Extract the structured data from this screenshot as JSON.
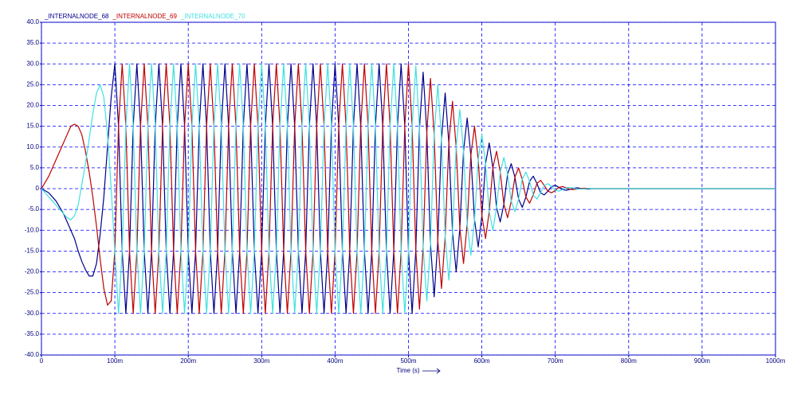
{
  "chart_data": {
    "type": "line",
    "xlabel": "Time (s)",
    "xlim": [
      0,
      1
    ],
    "ylim": [
      -40,
      40
    ],
    "xticks": [
      0,
      {
        "value": 0.1,
        "label": "100m"
      },
      {
        "value": 0.2,
        "label": "200m"
      },
      {
        "value": 0.3,
        "label": "300m"
      },
      {
        "value": 0.4,
        "label": "400m"
      },
      {
        "value": 0.5,
        "label": "500m"
      },
      {
        "value": 0.6,
        "label": "600m"
      },
      {
        "value": 0.7,
        "label": "700m"
      },
      {
        "value": 0.8,
        "label": "800m"
      },
      {
        "value": 0.9,
        "label": "900m"
      },
      {
        "value": 1,
        "label": "1000m"
      }
    ],
    "yticks": [
      {
        "value": 40,
        "label": "40.0"
      },
      {
        "value": 35,
        "label": "35.0"
      },
      {
        "value": 30,
        "label": "30.0"
      },
      {
        "value": 25,
        "label": "25.0"
      },
      {
        "value": 20,
        "label": "20.0"
      },
      {
        "value": 15,
        "label": "15.0"
      },
      {
        "value": 10,
        "label": "10.0"
      },
      {
        "value": 5,
        "label": "5.0"
      },
      0,
      {
        "value": -5,
        "label": "-5.0"
      },
      {
        "value": -10,
        "label": "-10.0"
      },
      {
        "value": -15,
        "label": "-15.0"
      },
      {
        "value": -20,
        "label": "-20.0"
      },
      {
        "value": -25,
        "label": "-25.0"
      },
      {
        "value": -30,
        "label": "-30.0"
      },
      {
        "value": -35,
        "label": "-35.0"
      },
      {
        "value": -40,
        "label": "-40.0"
      }
    ],
    "grid": true,
    "x": [
      0,
      0.005,
      0.01,
      0.015,
      0.02,
      0.025,
      0.03,
      0.035,
      0.04,
      0.045,
      0.05,
      0.055,
      0.06,
      0.065,
      0.07,
      0.075,
      0.08,
      0.085,
      0.09,
      0.095,
      0.1,
      0.105,
      0.11,
      0.115,
      0.12,
      0.125,
      0.13,
      0.135,
      0.14,
      0.145,
      0.15,
      0.155,
      0.16,
      0.165,
      0.17,
      0.175,
      0.18,
      0.185,
      0.19,
      0.195,
      0.2,
      0.205,
      0.21,
      0.215,
      0.22,
      0.225,
      0.23,
      0.235,
      0.24,
      0.245,
      0.25,
      0.255,
      0.26,
      0.265,
      0.27,
      0.275,
      0.28,
      0.285,
      0.29,
      0.295,
      0.3,
      0.305,
      0.31,
      0.315,
      0.32,
      0.325,
      0.33,
      0.335,
      0.34,
      0.345,
      0.35,
      0.355,
      0.36,
      0.365,
      0.37,
      0.375,
      0.38,
      0.385,
      0.39,
      0.395,
      0.4,
      0.405,
      0.41,
      0.415,
      0.42,
      0.425,
      0.43,
      0.435,
      0.44,
      0.445,
      0.45,
      0.455,
      0.46,
      0.465,
      0.47,
      0.475,
      0.48,
      0.485,
      0.49,
      0.495,
      0.5,
      0.505,
      0.51,
      0.515,
      0.52,
      0.525,
      0.53,
      0.535,
      0.54,
      0.545,
      0.55,
      0.555,
      0.56,
      0.565,
      0.57,
      0.575,
      0.58,
      0.585,
      0.59,
      0.595,
      0.6,
      0.605,
      0.61,
      0.615,
      0.62,
      0.625,
      0.63,
      0.635,
      0.64,
      0.645,
      0.65,
      0.655,
      0.66,
      0.665,
      0.67,
      0.675,
      0.68,
      0.685,
      0.69,
      0.695,
      0.7,
      0.705,
      0.71,
      0.715,
      0.72,
      0.725,
      0.73,
      0.735,
      0.74,
      0.745,
      0.75,
      0.755,
      0.76,
      0.765,
      0.77,
      0.775,
      0.78,
      0.785,
      0.79,
      0.795,
      0.8,
      0.805,
      0.81,
      0.815,
      0.82,
      0.825,
      0.83,
      0.835,
      0.84,
      0.845,
      0.85,
      0.855,
      0.86,
      0.865,
      0.87,
      0.875,
      0.88,
      0.885,
      0.89,
      0.895,
      0.9,
      0.905,
      0.91,
      0.915,
      0.92,
      0.925,
      0.93,
      0.935,
      0.94,
      0.945,
      0.95,
      0.955,
      0.96,
      0.965,
      0.97,
      0.975,
      0.98,
      0.985,
      0.99,
      0.995,
      1
    ],
    "series": [
      {
        "name": "_INTERNALNODE_68",
        "color": "#00008b",
        "values": [
          0,
          -0.5,
          -1,
          -2,
          -3,
          -4.5,
          -6,
          -8,
          -10,
          -12,
          -15,
          -17.5,
          -19.5,
          -21,
          -21,
          -18,
          -11,
          -2,
          10,
          22,
          30,
          15,
          -15,
          -30,
          -15,
          15,
          30,
          15,
          -15,
          -30,
          -15,
          15,
          30,
          15,
          -15,
          -30,
          -15,
          15,
          30,
          15,
          -15,
          -30,
          -15,
          15,
          30,
          15,
          -15,
          -30,
          -15,
          15,
          30,
          15,
          -15,
          -30,
          -15,
          15,
          30,
          15,
          -15,
          -30,
          -15,
          15,
          30,
          15,
          -15,
          -30,
          -15,
          15,
          30,
          15,
          -15,
          -30,
          -15,
          15,
          30,
          15,
          -15,
          -30,
          -15,
          15,
          30,
          15,
          -15,
          -30,
          -15,
          15,
          30,
          15,
          -15,
          -30,
          -15,
          15,
          30,
          15,
          -15,
          -30,
          -15,
          15,
          30,
          15,
          -15,
          -30,
          -14.75,
          14.5,
          28,
          13.5,
          -13.25,
          -26,
          -12.5,
          12,
          23,
          11,
          -10.5,
          -20,
          -9.5,
          9,
          17,
          8,
          -7.5,
          -14,
          -6.5,
          6,
          11,
          5,
          -4.5,
          -8,
          -3.75,
          3.5,
          6,
          2.75,
          -2.5,
          -4.5,
          -2,
          1.75,
          3,
          1.25,
          -1,
          -1.5,
          -0.6,
          0.5,
          0.8,
          0.3,
          -0.25,
          -0.4,
          -0.15,
          0.1,
          0.2,
          0.05,
          -0.05,
          -0.1,
          0,
          0,
          0,
          0,
          0,
          0,
          0,
          0,
          0,
          0,
          0,
          0,
          0,
          0,
          0,
          0,
          0,
          0,
          0,
          0,
          0,
          0,
          0,
          0,
          0,
          0,
          0,
          0,
          0,
          0,
          0,
          0,
          0,
          0,
          0,
          0,
          0,
          0,
          0,
          0,
          0,
          0,
          0,
          0,
          0,
          0,
          0,
          0,
          0,
          0,
          0
        ]
      },
      {
        "name": "_INTERNALNODE_69",
        "color": "#c00000",
        "values": [
          0,
          1.5,
          3,
          5,
          7,
          9,
          11,
          13,
          15,
          15.5,
          15,
          13,
          9,
          4,
          -2,
          -9,
          -17,
          -24,
          -28,
          -27,
          -15,
          15,
          30,
          15,
          -15,
          -30,
          -15,
          15,
          30,
          15,
          -15,
          -30,
          -15,
          15,
          30,
          15,
          -15,
          -30,
          -15,
          15,
          30,
          15,
          -15,
          -30,
          -15,
          15,
          30,
          15,
          -15,
          -30,
          -15,
          15,
          30,
          15,
          -15,
          -30,
          -15,
          15,
          30,
          15,
          -15,
          -30,
          -15,
          15,
          30,
          15,
          -15,
          -30,
          -15,
          15,
          30,
          15,
          -15,
          -30,
          -15,
          15,
          30,
          15,
          -15,
          -30,
          -15,
          15,
          30,
          15,
          -15,
          -30,
          -15,
          15,
          30,
          15,
          -15,
          -30,
          -15,
          15,
          30,
          15,
          -15,
          -30,
          -15,
          15,
          30,
          15,
          -14.75,
          -29,
          -14,
          13.5,
          26.5,
          13,
          -12.5,
          -24,
          -11.5,
          11,
          21,
          10,
          -9.5,
          -18,
          -8.5,
          8,
          15,
          7,
          -6.5,
          -12,
          -5.5,
          5,
          9,
          4,
          -3.75,
          -7,
          -3,
          2.75,
          5,
          2.25,
          -2,
          -3.5,
          -1.5,
          1.25,
          2,
          0.75,
          -0.6,
          -1,
          -0.4,
          0.3,
          0.5,
          0.2,
          -0.15,
          -0.2,
          -0.1,
          0.05,
          0.1,
          0.05,
          0,
          0,
          0,
          0,
          0,
          0,
          0,
          0,
          0,
          0,
          0,
          0,
          0,
          0,
          0,
          0,
          0,
          0,
          0,
          0,
          0,
          0,
          0,
          0,
          0,
          0,
          0,
          0,
          0,
          0,
          0,
          0,
          0,
          0,
          0,
          0,
          0,
          0,
          0,
          0,
          0,
          0,
          0,
          0,
          0,
          0,
          0,
          0,
          0,
          0,
          0
        ]
      },
      {
        "name": "_INTERNALNODE_70",
        "color": "#40e0e0",
        "values": [
          0,
          -1,
          -2,
          -3,
          -4,
          -5,
          -6,
          -7,
          -7.5,
          -6.5,
          -4,
          1,
          6,
          12,
          18,
          23,
          25,
          22,
          13,
          0,
          -15,
          -30,
          -15,
          15,
          30,
          15,
          -15,
          -30,
          -15,
          15,
          30,
          15,
          -15,
          -30,
          -15,
          15,
          30,
          15,
          -15,
          -30,
          -15,
          15,
          30,
          15,
          -15,
          -30,
          -15,
          15,
          30,
          15,
          -15,
          -30,
          -15,
          15,
          30,
          15,
          -15,
          -30,
          -15,
          15,
          30,
          15,
          -15,
          -30,
          -15,
          15,
          30,
          15,
          -15,
          -30,
          -15,
          15,
          30,
          15,
          -15,
          -30,
          -15,
          15,
          30,
          15,
          -15,
          -30,
          -15,
          15,
          30,
          15,
          -15,
          -30,
          -15,
          15,
          30,
          15,
          -15,
          -30,
          -15,
          15,
          30,
          15,
          -15,
          -30,
          -15,
          15,
          29.5,
          14.5,
          -14,
          -27,
          -13.25,
          13,
          25,
          12,
          -11.5,
          -22,
          -10.5,
          10,
          19,
          9,
          -8.5,
          -16,
          -7.5,
          7,
          13,
          6,
          -5.5,
          -10,
          -4.5,
          4,
          7.5,
          3.5,
          -3,
          -5.5,
          -2.5,
          2.25,
          4,
          1.75,
          -1.5,
          -2.5,
          -1,
          0.75,
          1.2,
          0.5,
          -0.4,
          -0.6,
          -0.25,
          0.2,
          0.3,
          0.1,
          -0.1,
          -0.1,
          -0.05,
          0.05,
          0,
          0,
          0,
          0,
          0,
          0,
          0,
          0,
          0,
          0,
          0,
          0,
          0,
          0,
          0,
          0,
          0,
          0,
          0,
          0,
          0,
          0,
          0,
          0,
          0,
          0,
          0,
          0,
          0,
          0,
          0,
          0,
          0,
          0,
          0,
          0,
          0,
          0,
          0,
          0,
          0,
          0,
          0,
          0,
          0,
          0,
          0,
          0,
          0,
          0,
          0
        ]
      }
    ]
  }
}
